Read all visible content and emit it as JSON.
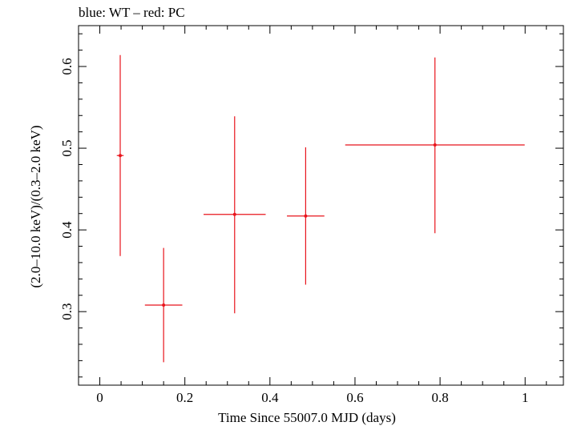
{
  "chart_data": {
    "type": "scatter",
    "title": "blue: WT – red: PC",
    "xlabel": "Time Since 55007.0 MJD (days)",
    "ylabel": "(2.0–10.0 keV)/(0.3–2.0 keV)",
    "xlim": [
      -0.05,
      1.09
    ],
    "ylim": [
      0.21,
      0.65
    ],
    "x_ticks": [
      0,
      0.2,
      0.4,
      0.6,
      0.8,
      1
    ],
    "x_tick_labels": [
      "0",
      "0.2",
      "0.4",
      "0.6",
      "0.8",
      "1"
    ],
    "y_ticks": [
      0.3,
      0.4,
      0.5,
      0.6
    ],
    "y_tick_labels": [
      "0.3",
      "0.4",
      "0.5",
      "0.6"
    ],
    "series": [
      {
        "name": "PC",
        "color": "#e8141c",
        "points": [
          {
            "x": 0.048,
            "xerr_low": 0.008,
            "xerr_high": 0.008,
            "y": 0.491,
            "y_low": 0.368,
            "y_high": 0.614
          },
          {
            "x": 0.15,
            "xerr_low": 0.044,
            "xerr_high": 0.044,
            "y": 0.308,
            "y_low": 0.238,
            "y_high": 0.378
          },
          {
            "x": 0.317,
            "xerr_low": 0.073,
            "xerr_high": 0.073,
            "y": 0.419,
            "y_low": 0.298,
            "y_high": 0.539
          },
          {
            "x": 0.484,
            "xerr_low": 0.044,
            "xerr_high": 0.044,
            "y": 0.417,
            "y_low": 0.333,
            "y_high": 0.501
          },
          {
            "x": 0.788,
            "xerr_low": 0.211,
            "xerr_high": 0.211,
            "y": 0.504,
            "y_low": 0.396,
            "y_high": 0.611
          }
        ]
      }
    ]
  }
}
